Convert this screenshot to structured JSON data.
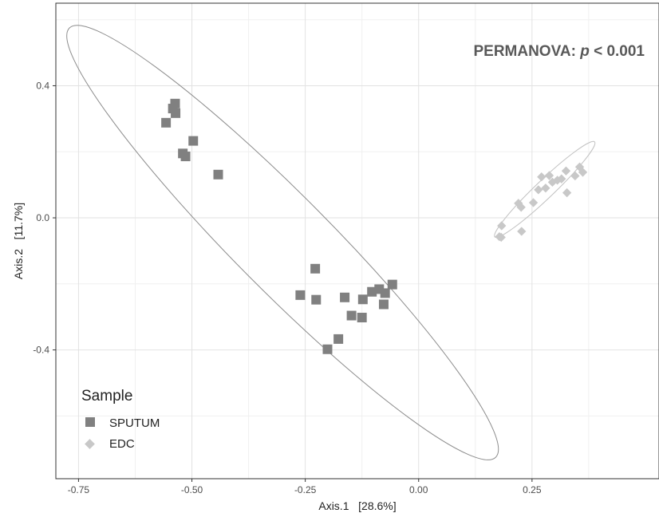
{
  "chart_data": {
    "type": "scatter",
    "xlabel": "Axis.1   [28.6%]",
    "ylabel": "Axis.2   [11.7%]",
    "xlim": [
      -0.8,
      0.53
    ],
    "ylim": [
      -0.79,
      0.65
    ],
    "x_ticks": [
      -0.75,
      -0.5,
      -0.25,
      0.0,
      0.25
    ],
    "x_tick_labels": [
      "-0.75",
      "-0.50",
      "-0.25",
      "0.00",
      "0.25"
    ],
    "y_ticks": [
      -0.4,
      0.0,
      0.4
    ],
    "y_tick_labels": [
      "-0.4",
      "0.0",
      "0.4"
    ],
    "grid": true,
    "annotation": {
      "prefix": "PERMANOVA: ",
      "italic": "p",
      "suffix": " < 0.001"
    },
    "legend": {
      "title": "Sample",
      "placement": "bottom-left"
    },
    "series": [
      {
        "name": "SPUTUM",
        "color": "#808080",
        "marker": "square",
        "points": [
          [
            -0.537,
            0.346
          ],
          [
            -0.542,
            0.331
          ],
          [
            -0.536,
            0.317
          ],
          [
            -0.557,
            0.288
          ],
          [
            -0.497,
            0.233
          ],
          [
            -0.52,
            0.195
          ],
          [
            -0.514,
            0.186
          ],
          [
            -0.442,
            0.131
          ],
          [
            -0.228,
            -0.154
          ],
          [
            -0.261,
            -0.234
          ],
          [
            -0.226,
            -0.248
          ],
          [
            -0.058,
            -0.202
          ],
          [
            -0.103,
            -0.224
          ],
          [
            -0.087,
            -0.216
          ],
          [
            -0.074,
            -0.228
          ],
          [
            -0.123,
            -0.247
          ],
          [
            -0.163,
            -0.241
          ],
          [
            -0.077,
            -0.262
          ],
          [
            -0.148,
            -0.296
          ],
          [
            -0.125,
            -0.302
          ],
          [
            -0.177,
            -0.367
          ],
          [
            -0.201,
            -0.398
          ]
        ]
      },
      {
        "name": "EDC",
        "color": "#c8c8c8",
        "marker": "diamond",
        "points": [
          [
            0.355,
            0.154
          ],
          [
            0.362,
            0.138
          ],
          [
            0.325,
            0.142
          ],
          [
            0.345,
            0.127
          ],
          [
            0.315,
            0.118
          ],
          [
            0.306,
            0.114
          ],
          [
            0.295,
            0.108
          ],
          [
            0.288,
            0.128
          ],
          [
            0.271,
            0.124
          ],
          [
            0.28,
            0.09
          ],
          [
            0.264,
            0.085
          ],
          [
            0.327,
            0.076
          ],
          [
            0.253,
            0.046
          ],
          [
            0.226,
            0.032
          ],
          [
            0.22,
            0.044
          ],
          [
            0.183,
            -0.024
          ],
          [
            0.178,
            -0.057
          ],
          [
            0.182,
            -0.059
          ],
          [
            0.227,
            -0.041
          ]
        ]
      }
    ],
    "ellipses": [
      {
        "series": "SPUTUM",
        "color": "#8c8c8c",
        "endpoints": [
          [
            -0.77,
            0.575
          ],
          [
            0.17,
            -0.725
          ]
        ],
        "semi_minor": 0.12
      },
      {
        "series": "EDC",
        "color": "#c0c0c0",
        "endpoints": [
          [
            0.168,
            -0.058
          ],
          [
            0.388,
            0.23
          ]
        ],
        "semi_minor": 0.023
      }
    ]
  }
}
